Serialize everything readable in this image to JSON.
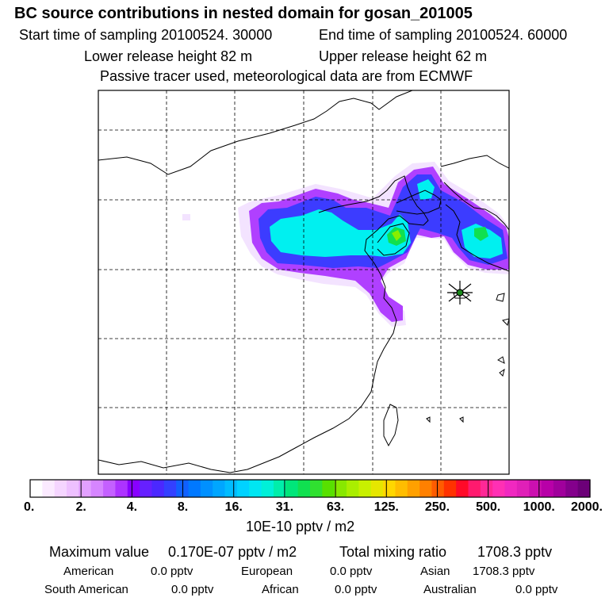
{
  "header": {
    "title": "BC  source contributions in nested domain for gosan_201005",
    "start": "Start time of sampling 20100524. 30000",
    "end": "End time of sampling 20100524. 60000",
    "lower": "Lower release height   82 m",
    "upper": "Upper release height   62 m",
    "note": "Passive tracer used, meteorological data are from ECMWF"
  },
  "colors": {
    "frame": "#000000",
    "grid": "#000000",
    "coast": "#000000",
    "marker": "#1a8a1a",
    "low": "#f3e3ff",
    "violet": "#b040ff",
    "purple": "#8a00ff",
    "blue": "#3c3cff",
    "cyan": "#00f0f0",
    "green": "#10e050",
    "lime": "#88ee00"
  },
  "colorbar": {
    "colors": [
      "#ffffff",
      "#fbeaff",
      "#f5d5ff",
      "#eec0ff",
      "#e2a0ff",
      "#d685ff",
      "#c460ff",
      "#ad33ff",
      "#8800ff",
      "#6620ff",
      "#4b28ff",
      "#3340ff",
      "#1060ff",
      "#0078ff",
      "#0090ff",
      "#00a6ff",
      "#00bcff",
      "#00d2ff",
      "#00e6f2",
      "#00f0d8",
      "#00eeaa",
      "#00e67a",
      "#10e050",
      "#30e030",
      "#58e000",
      "#88e800",
      "#aaee00",
      "#c8f000",
      "#e6e600",
      "#ffd700",
      "#ffbd00",
      "#ffa000",
      "#ff8000",
      "#ff5c00",
      "#ff3200",
      "#ff0a28",
      "#ff1a6e",
      "#ff2896",
      "#ff30b4",
      "#f028c0",
      "#e020b8",
      "#cc10b0",
      "#b800a8",
      "#a0009c",
      "#84008c",
      "#6c0078"
    ],
    "labels": [
      "0.",
      "2.",
      "4.",
      "8.",
      "16.",
      "31.",
      "63.",
      "125.",
      "250.",
      "500.",
      "1000.",
      "2000."
    ],
    "unit": "10E-10 pptv / m2"
  },
  "summary": {
    "max_label": "Maximum value",
    "max_value": "0.170E-07 pptv / m2",
    "total_label": "Total mixing ratio",
    "total_value": "1708.3 pptv",
    "american_label": "American",
    "american_value": "0.0 pptv",
    "european_label": "European",
    "european_value": "0.0 pptv",
    "asian_label": "Asian",
    "asian_value": "1708.3 pptv",
    "south_american_label": "South American",
    "south_american_value": "0.0 pptv",
    "african_label": "African",
    "african_value": "0.0 pptv",
    "australian_label": "Australian",
    "australian_value": "0.0 pptv"
  }
}
